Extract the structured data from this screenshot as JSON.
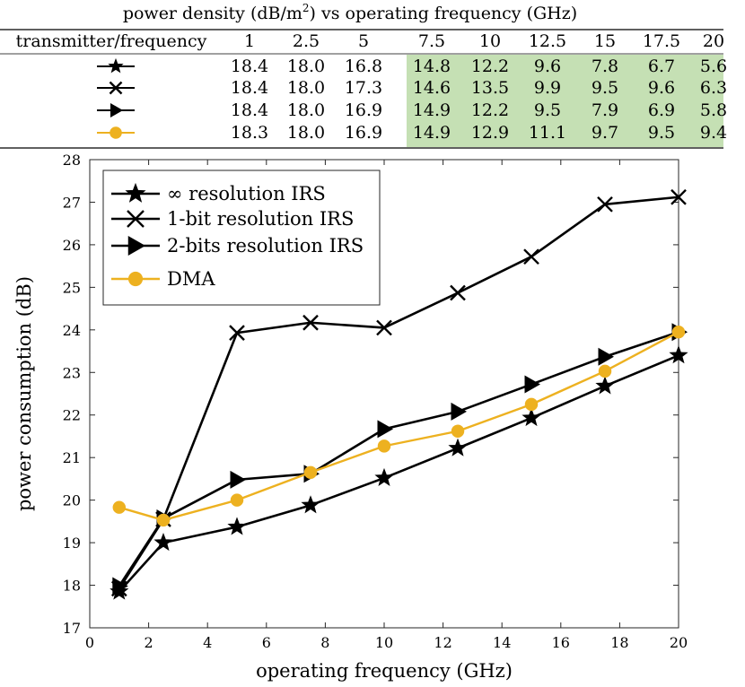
{
  "table": {
    "title_pre": "power density (dB/m",
    "title_sup": "2",
    "title_post": ") vs operating frequency (GHz)",
    "header_first": "transmitter/frequency",
    "frequencies": [
      "1",
      "2.5",
      "5",
      "7.5",
      "10",
      "12.5",
      "15",
      "17.5",
      "20"
    ],
    "highlight_color": "#c5e0b4",
    "rows": [
      {
        "marker": "star",
        "color": "#000000",
        "values": [
          "18.4",
          "18.0",
          "16.8",
          "14.8",
          "12.2",
          "9.6",
          "7.8",
          "6.7",
          "5.6"
        ]
      },
      {
        "marker": "x",
        "color": "#000000",
        "values": [
          "18.4",
          "18.0",
          "17.3",
          "14.6",
          "13.5",
          "9.9",
          "9.5",
          "9.6",
          "6.3"
        ]
      },
      {
        "marker": "triangle",
        "color": "#000000",
        "values": [
          "18.4",
          "18.0",
          "16.9",
          "14.9",
          "12.2",
          "9.5",
          "7.9",
          "6.9",
          "5.8"
        ]
      },
      {
        "marker": "circle",
        "color": "#EDB120",
        "values": [
          "18.3",
          "18.0",
          "16.9",
          "14.9",
          "12.9",
          "11.1",
          "9.7",
          "9.5",
          "9.4"
        ]
      }
    ]
  },
  "chart_data": {
    "type": "line",
    "xlabel": "operating frequency (GHz)",
    "ylabel": "power consumption (dB)",
    "xlim": [
      0,
      20
    ],
    "ylim": [
      17,
      28
    ],
    "xticks": [
      0,
      2,
      4,
      6,
      8,
      10,
      12,
      14,
      16,
      18,
      20
    ],
    "yticks": [
      17,
      18,
      19,
      20,
      21,
      22,
      23,
      24,
      25,
      26,
      27,
      28
    ],
    "grid": false,
    "legend_position": "top-left",
    "x": [
      1,
      2.5,
      5,
      7.5,
      10,
      12.5,
      15,
      17.5,
      20
    ],
    "series": [
      {
        "name": "∞ resolution IRS",
        "marker": "star",
        "color": "#000000",
        "values": [
          17.85,
          19.0,
          19.37,
          19.88,
          20.52,
          21.22,
          21.93,
          22.68,
          23.4
        ]
      },
      {
        "name": "1-bit resolution IRS",
        "marker": "x",
        "color": "#000000",
        "values": [
          17.92,
          19.55,
          23.93,
          24.17,
          24.05,
          24.87,
          25.72,
          26.95,
          27.12
        ]
      },
      {
        "name": "2-bits resolution IRS",
        "marker": "triangle",
        "color": "#000000",
        "values": [
          17.98,
          19.57,
          20.48,
          20.62,
          21.67,
          22.08,
          22.72,
          23.37,
          23.95
        ]
      },
      {
        "name": "DMA",
        "marker": "circle",
        "color": "#EDB120",
        "values": [
          19.83,
          19.53,
          20.0,
          20.65,
          21.27,
          21.62,
          22.25,
          23.03,
          23.95
        ]
      }
    ]
  }
}
